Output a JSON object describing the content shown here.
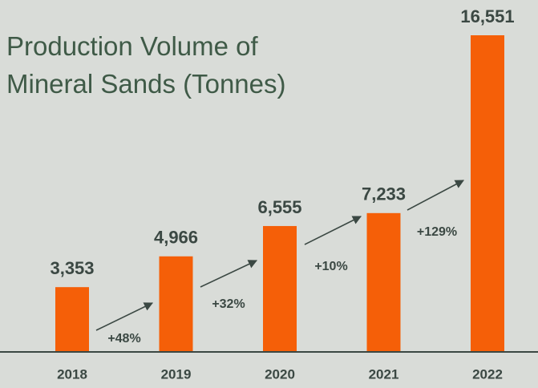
{
  "chart_data": {
    "type": "bar",
    "title": "Production Volume of Mineral Sands (Tonnes)",
    "categories": [
      "2018",
      "2019",
      "2020",
      "2021",
      "2022"
    ],
    "values": [
      3353,
      4966,
      6555,
      7233,
      16551
    ],
    "value_labels": [
      "3,353",
      "4,966",
      "6,555",
      "7,233",
      "16,551"
    ],
    "annotations": [
      "+48%",
      "+32%",
      "+10%",
      "+129%"
    ],
    "color": "#f55f08"
  }
}
